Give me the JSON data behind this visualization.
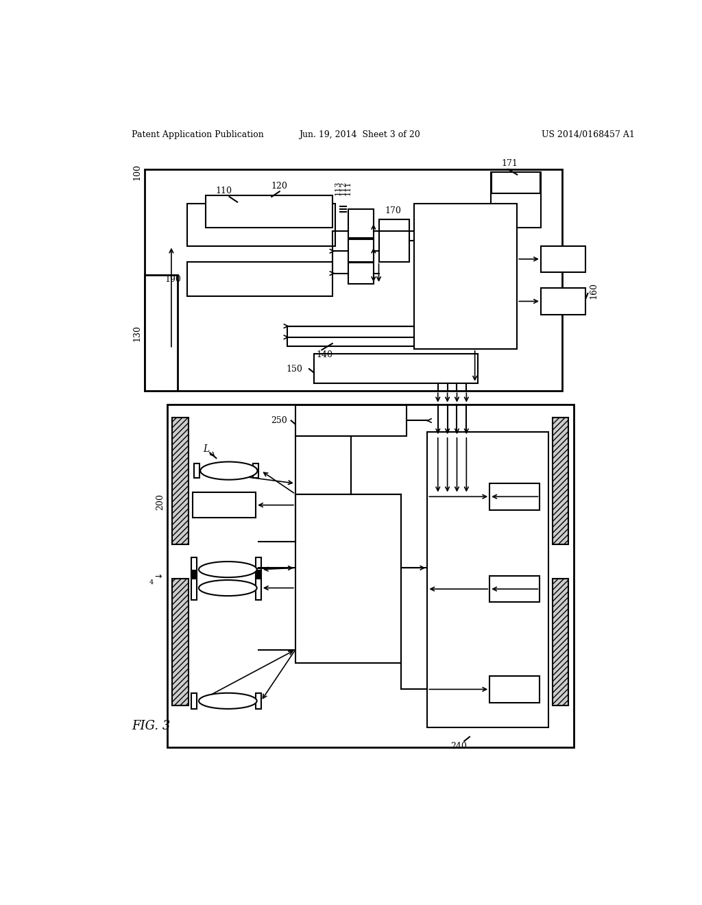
{
  "title_left": "Patent Application Publication",
  "title_center": "Jun. 19, 2014  Sheet 3 of 20",
  "title_right": "US 2014/0168457 A1",
  "fig_label": "FIG. 3",
  "bg_color": "#ffffff"
}
